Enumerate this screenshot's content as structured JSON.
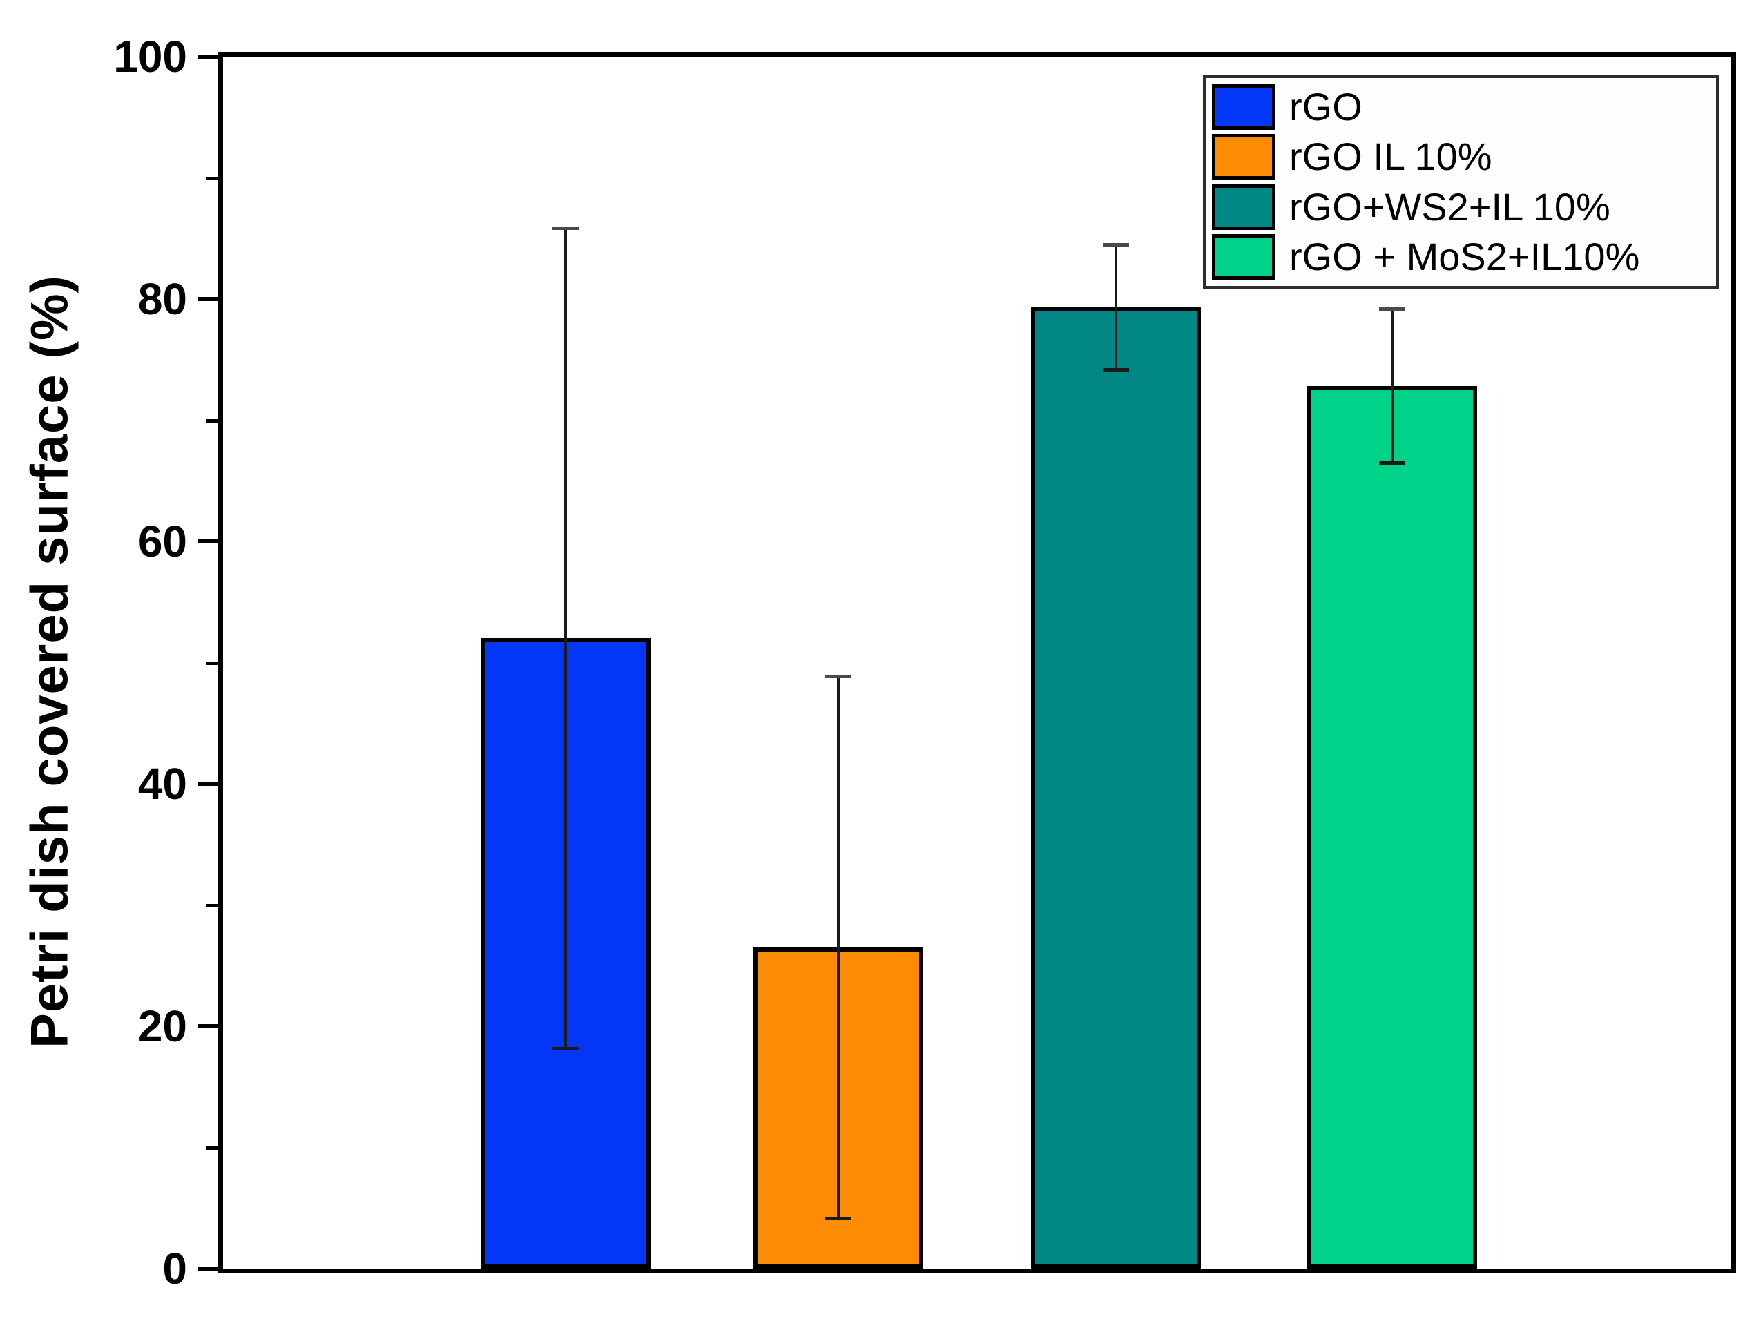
{
  "chart_data": {
    "type": "bar",
    "title": "",
    "xlabel": "",
    "ylabel": "Petri dish covered surface (%)",
    "ylim": [
      0,
      100
    ],
    "y_major_ticks": [
      0,
      20,
      40,
      60,
      80,
      100
    ],
    "y_major_tick_labels": [
      "0",
      "20",
      "40",
      "60",
      "80",
      "100"
    ],
    "y_minor_step": 10,
    "grid": false,
    "legend_position": "top-right",
    "categories": [
      "rGO",
      "rGO IL 10%",
      "rGO+WS2+IL 10%",
      "rGO + MoS2+IL10%"
    ],
    "values": [
      52,
      26.5,
      79.3,
      72.8
    ],
    "errors": [
      34,
      22.5,
      5.3,
      6.5
    ],
    "bar_colors": [
      "#0336F6",
      "#FC8C03",
      "#008786",
      "#00D389"
    ],
    "bar_border_color": "#000000",
    "error_bar_color": "#1a1a1a",
    "error_cap_color": "#4a4a4a",
    "axis_color": "#000000",
    "tick_label_color": "#000000"
  }
}
